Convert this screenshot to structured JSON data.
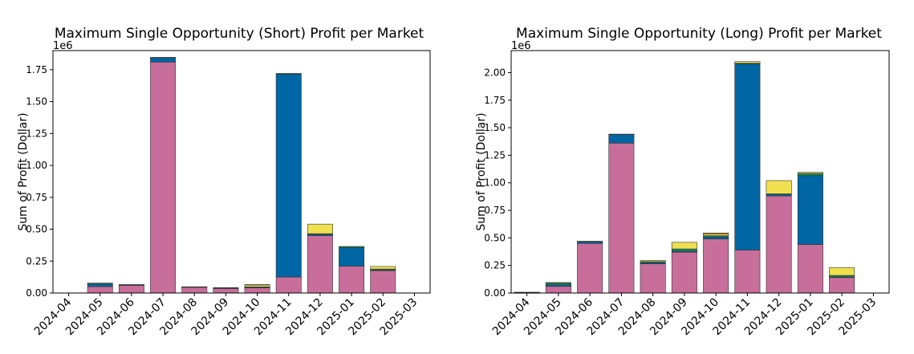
{
  "chart_data": [
    {
      "type": "bar",
      "stacked": true,
      "title": "Maximum Single Opportunity (Short) Profit per Market",
      "ylabel": "Sum of Profit (Dollar)",
      "xlabel": "",
      "offset_text": "1e6",
      "ylim": [
        0,
        1.9
      ],
      "yticks": [
        0.0,
        0.25,
        0.5,
        0.75,
        1.0,
        1.25,
        1.5,
        1.75
      ],
      "ytick_labels": [
        "0.00",
        "0.25",
        "0.50",
        "0.75",
        "1.00",
        "1.25",
        "1.50",
        "1.75"
      ],
      "categories": [
        "2024-04",
        "2024-05",
        "2024-06",
        "2024-07",
        "2024-08",
        "2024-09",
        "2024-10",
        "2024-11",
        "2024-12",
        "2025-01",
        "2025-02",
        "2025-03"
      ],
      "series": [
        {
          "name": "pink",
          "color": "#c86e9b",
          "values": [
            0,
            0.05,
            0.06,
            1.81,
            0.045,
            0.035,
            0.04,
            0.125,
            0.45,
            0.21,
            0.175,
            0
          ]
        },
        {
          "name": "blue",
          "color": "#0066a4",
          "values": [
            0,
            0.02,
            0.005,
            0.035,
            0.003,
            0.006,
            0.006,
            1.59,
            0.01,
            0.145,
            0.005,
            0
          ]
        },
        {
          "name": "green",
          "color": "#1a8a55",
          "values": [
            0,
            0.008,
            0.001,
            0.002,
            0.001,
            0.001,
            0.002,
            0.006,
            0.005,
            0.01,
            0.008,
            0
          ]
        },
        {
          "name": "yellow",
          "color": "#f0e050",
          "values": [
            0,
            0,
            0,
            0,
            0,
            0,
            0.015,
            0,
            0.075,
            0,
            0.02,
            0
          ]
        },
        {
          "name": "orange",
          "color": "#e59a28",
          "values": [
            0,
            0,
            0,
            0,
            0,
            0,
            0.003,
            0,
            0,
            0,
            0,
            0
          ]
        }
      ]
    },
    {
      "type": "bar",
      "stacked": true,
      "title": "Maximum Single Opportunity (Long) Profit per Market",
      "ylabel": "Sum of Profit (Dollar)",
      "xlabel": "",
      "offset_text": "1e6",
      "ylim": [
        0,
        2.2
      ],
      "yticks": [
        0.0,
        0.25,
        0.5,
        0.75,
        1.0,
        1.25,
        1.5,
        1.75,
        2.0
      ],
      "ytick_labels": [
        "0.00",
        "0.25",
        "0.50",
        "0.75",
        "1.00",
        "1.25",
        "1.50",
        "1.75",
        "2.00"
      ],
      "categories": [
        "2024-04",
        "2024-05",
        "2024-06",
        "2024-07",
        "2024-08",
        "2024-09",
        "2024-10",
        "2024-11",
        "2024-12",
        "2025-01",
        "2025-02",
        "2025-03"
      ],
      "series": [
        {
          "name": "pink",
          "color": "#c86e9b",
          "values": [
            0.002,
            0.06,
            0.45,
            1.36,
            0.265,
            0.37,
            0.49,
            0.39,
            0.88,
            0.44,
            0.14,
            0
          ]
        },
        {
          "name": "blue",
          "color": "#0066a4",
          "values": [
            0.004,
            0.015,
            0.015,
            0.08,
            0.01,
            0.01,
            0.02,
            1.69,
            0.015,
            0.625,
            0.005,
            0
          ]
        },
        {
          "name": "green",
          "color": "#1a8a55",
          "values": [
            0.001,
            0.015,
            0.005,
            0.002,
            0.01,
            0.02,
            0.01,
            0.005,
            0.005,
            0.02,
            0.015,
            0
          ]
        },
        {
          "name": "yellow",
          "color": "#f0e050",
          "values": [
            0,
            0.005,
            0,
            0,
            0.01,
            0.06,
            0.015,
            0.015,
            0.12,
            0.01,
            0.07,
            0
          ]
        },
        {
          "name": "orange",
          "color": "#e59a28",
          "values": [
            0,
            0,
            0,
            0,
            0,
            0,
            0.01,
            0,
            0,
            0,
            0,
            0
          ]
        }
      ]
    }
  ]
}
